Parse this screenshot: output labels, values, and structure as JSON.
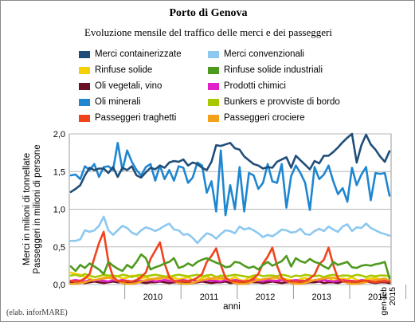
{
  "title": "Porto di Genova",
  "subtitle": "Evoluzione mensile del traffico delle merci e dei passeggeri",
  "credit": "(elab. inforMARE)",
  "chart_data": {
    "type": "line",
    "title": "Porto di Genova",
    "subtitle": "Evoluzione mensile del traffico delle merci e dei passeggeri",
    "xlabel": "anni",
    "ylabel": "Merci in milioni di tonnellate\nPasseggeri in milioni di persone",
    "ylim": [
      0,
      2.0
    ],
    "yticks": [
      "0,0",
      "0,5",
      "1,0",
      "1,5",
      "2,0"
    ],
    "grid": true,
    "legend_position": "top",
    "x_labels": [
      "2010",
      "2011",
      "2012",
      "2013",
      "2014",
      "gen-feb\n2015"
    ],
    "x_start": "2009-01",
    "x_end": "2015-02",
    "series": [
      {
        "name": "Merci containerizzate",
        "color": "#1f4e79",
        "values": [
          1.23,
          1.27,
          1.32,
          1.45,
          1.55,
          1.52,
          1.54,
          1.54,
          1.48,
          1.56,
          1.43,
          1.55,
          1.52,
          1.57,
          1.45,
          1.42,
          1.49,
          1.55,
          1.53,
          1.58,
          1.55,
          1.62,
          1.64,
          1.63,
          1.66,
          1.58,
          1.62,
          1.6,
          1.55,
          1.52,
          1.63,
          1.85,
          1.84,
          1.86,
          1.88,
          1.81,
          1.79,
          1.7,
          1.65,
          1.6,
          1.58,
          1.54,
          1.56,
          1.55,
          1.63,
          1.66,
          1.69,
          1.55,
          1.71,
          1.65,
          1.59,
          1.53,
          1.64,
          1.61,
          1.71,
          1.71,
          1.76,
          1.82,
          1.89,
          1.95,
          2.0,
          1.62,
          1.85,
          1.99,
          1.86,
          1.79,
          1.7,
          1.63,
          1.77
        ]
      },
      {
        "name": "Merci convenzionali",
        "color": "#8cc8f0",
        "values": [
          0.58,
          0.58,
          0.6,
          0.72,
          0.7,
          0.72,
          0.78,
          0.9,
          0.72,
          0.66,
          0.72,
          0.78,
          0.75,
          0.69,
          0.66,
          0.72,
          0.76,
          0.74,
          0.71,
          0.74,
          0.78,
          0.81,
          0.73,
          0.72,
          0.66,
          0.67,
          0.62,
          0.55,
          0.62,
          0.68,
          0.66,
          0.61,
          0.67,
          0.72,
          0.71,
          0.68,
          0.77,
          0.73,
          0.75,
          0.72,
          0.68,
          0.63,
          0.66,
          0.64,
          0.68,
          0.73,
          0.72,
          0.69,
          0.7,
          0.74,
          0.67,
          0.66,
          0.71,
          0.74,
          0.71,
          0.77,
          0.73,
          0.7,
          0.77,
          0.8,
          0.71,
          0.76,
          0.75,
          0.81,
          0.75,
          0.72,
          0.69,
          0.67,
          0.65
        ]
      },
      {
        "name": "Rinfuse solide",
        "color": "#f6d000",
        "values": [
          0.16,
          0.14,
          0.13,
          0.1,
          0.08,
          0.05,
          0.07,
          0.09,
          0.12,
          0.1,
          0.11,
          0.08,
          0.09,
          0.12,
          0.11,
          0.08,
          0.1,
          0.07,
          0.06,
          0.08,
          0.1,
          0.12,
          0.09,
          0.07,
          0.08,
          0.1,
          0.06,
          0.05,
          0.09,
          0.11,
          0.07,
          0.06,
          0.08,
          0.05,
          0.07,
          0.1,
          0.06,
          0.05,
          0.09,
          0.1,
          0.07,
          0.05,
          0.08,
          0.06,
          0.05,
          0.08,
          0.07,
          0.06,
          0.05,
          0.07,
          0.09,
          0.06,
          0.05,
          0.07,
          0.08,
          0.09,
          0.05,
          0.06,
          0.08,
          0.07,
          0.1,
          0.06,
          0.05,
          0.07,
          0.08,
          0.09,
          0.06,
          0.05,
          0.05
        ]
      },
      {
        "name": "Rinfuse solide industriali",
        "color": "#4e9a1e",
        "values": [
          0.24,
          0.18,
          0.26,
          0.22,
          0.28,
          0.24,
          0.2,
          0.14,
          0.3,
          0.25,
          0.21,
          0.18,
          0.26,
          0.22,
          0.3,
          0.4,
          0.35,
          0.2,
          0.23,
          0.25,
          0.28,
          0.3,
          0.35,
          0.22,
          0.24,
          0.28,
          0.25,
          0.3,
          0.33,
          0.35,
          0.32,
          0.29,
          0.27,
          0.23,
          0.24,
          0.3,
          0.29,
          0.25,
          0.22,
          0.24,
          0.2,
          0.26,
          0.3,
          0.25,
          0.28,
          0.31,
          0.38,
          0.24,
          0.35,
          0.31,
          0.29,
          0.34,
          0.3,
          0.28,
          0.24,
          0.21,
          0.3,
          0.26,
          0.28,
          0.3,
          0.23,
          0.22,
          0.25,
          0.26,
          0.25,
          0.27,
          0.28,
          0.3,
          0.08
        ]
      },
      {
        "name": "Oli vegetali, vino",
        "color": "#6b0f24",
        "values": [
          0.03,
          0.04,
          0.03,
          0.02,
          0.03,
          0.04,
          0.03,
          0.02,
          0.03,
          0.04,
          0.03,
          0.03,
          0.02,
          0.03,
          0.04,
          0.03,
          0.02,
          0.03,
          0.03,
          0.04,
          0.03,
          0.02,
          0.03,
          0.03,
          0.04,
          0.03,
          0.02,
          0.03,
          0.04,
          0.03,
          0.02,
          0.03,
          0.03,
          0.04,
          0.02,
          0.03,
          0.03,
          0.02,
          0.04,
          0.03,
          0.03,
          0.02,
          0.03,
          0.04,
          0.03,
          0.02,
          0.03,
          0.03,
          0.04,
          0.03,
          0.02,
          0.03,
          0.03,
          0.04,
          0.02,
          0.03,
          0.03,
          0.02,
          0.04,
          0.03,
          0.03,
          0.02,
          0.03,
          0.04,
          0.03,
          0.02,
          0.03,
          0.03,
          0.02
        ]
      },
      {
        "name": "Prodotti chimici",
        "color": "#e020c8",
        "values": [
          0.05,
          0.06,
          0.05,
          0.04,
          0.06,
          0.05,
          0.06,
          0.05,
          0.04,
          0.06,
          0.05,
          0.06,
          0.05,
          0.04,
          0.06,
          0.05,
          0.05,
          0.06,
          0.04,
          0.05,
          0.06,
          0.05,
          0.04,
          0.05,
          0.06,
          0.05,
          0.06,
          0.04,
          0.05,
          0.06,
          0.05,
          0.05,
          0.04,
          0.06,
          0.05,
          0.06,
          0.05,
          0.04,
          0.05,
          0.06,
          0.05,
          0.04,
          0.06,
          0.05,
          0.05,
          0.06,
          0.04,
          0.05,
          0.06,
          0.05,
          0.05,
          0.04,
          0.06,
          0.05,
          0.06,
          0.05,
          0.04,
          0.05,
          0.06,
          0.05,
          0.05,
          0.04,
          0.06,
          0.05,
          0.05,
          0.06,
          0.04,
          0.05,
          0.05
        ]
      },
      {
        "name": "Oli minerali",
        "color": "#1f86d0",
        "values": [
          1.45,
          1.46,
          1.4,
          1.57,
          1.52,
          1.6,
          1.43,
          1.56,
          1.57,
          1.52,
          1.88,
          1.52,
          1.78,
          1.63,
          1.52,
          1.45,
          1.56,
          1.6,
          1.38,
          1.58,
          1.4,
          1.52,
          1.38,
          1.57,
          1.55,
          1.35,
          1.42,
          1.62,
          1.58,
          1.22,
          1.37,
          0.97,
          1.78,
          0.92,
          1.32,
          1.0,
          1.56,
          0.97,
          1.48,
          1.45,
          1.27,
          1.35,
          1.6,
          1.37,
          1.35,
          1.6,
          1.02,
          1.44,
          1.58,
          1.48,
          1.35,
          0.99,
          1.56,
          1.4,
          1.46,
          1.58,
          1.37,
          1.2,
          1.28,
          1.1,
          1.55,
          1.32,
          1.46,
          1.56,
          1.12,
          1.48,
          1.47,
          1.48,
          1.18
        ]
      },
      {
        "name": "Bunkers e provviste di bordo",
        "color": "#a8c800",
        "values": [
          0.12,
          0.13,
          0.11,
          0.14,
          0.12,
          0.1,
          0.11,
          0.13,
          0.12,
          0.12,
          0.11,
          0.13,
          0.12,
          0.1,
          0.12,
          0.13,
          0.11,
          0.12,
          0.13,
          0.12,
          0.11,
          0.1,
          0.12,
          0.13,
          0.12,
          0.11,
          0.12,
          0.13,
          0.11,
          0.12,
          0.13,
          0.1,
          0.12,
          0.11,
          0.12,
          0.13,
          0.12,
          0.11,
          0.1,
          0.12,
          0.13,
          0.11,
          0.12,
          0.12,
          0.11,
          0.13,
          0.12,
          0.1,
          0.12,
          0.11,
          0.13,
          0.12,
          0.11,
          0.12,
          0.1,
          0.12,
          0.13,
          0.11,
          0.12,
          0.12,
          0.11,
          0.13,
          0.12,
          0.1,
          0.12,
          0.11,
          0.12,
          0.12,
          0.11
        ]
      },
      {
        "name": "Passeggeri traghetti",
        "color": "#f0431c",
        "values": [
          0.05,
          0.04,
          0.05,
          0.08,
          0.14,
          0.35,
          0.55,
          0.7,
          0.3,
          0.1,
          0.05,
          0.04,
          0.05,
          0.04,
          0.06,
          0.1,
          0.16,
          0.34,
          0.45,
          0.56,
          0.28,
          0.1,
          0.05,
          0.04,
          0.05,
          0.04,
          0.06,
          0.09,
          0.14,
          0.3,
          0.38,
          0.48,
          0.26,
          0.09,
          0.05,
          0.04,
          0.04,
          0.04,
          0.05,
          0.08,
          0.14,
          0.28,
          0.37,
          0.49,
          0.25,
          0.09,
          0.05,
          0.04,
          0.04,
          0.04,
          0.05,
          0.08,
          0.13,
          0.27,
          0.33,
          0.49,
          0.26,
          0.08,
          0.04,
          0.04,
          0.04,
          0.04,
          0.05,
          0.05,
          0.04,
          0.03,
          0.04,
          0.04,
          0.04
        ]
      },
      {
        "name": "Passeggeri crociere",
        "color": "#f5a01a",
        "values": [
          0.01,
          0.01,
          0.02,
          0.03,
          0.05,
          0.06,
          0.07,
          0.08,
          0.09,
          0.08,
          0.05,
          0.02,
          0.01,
          0.01,
          0.02,
          0.04,
          0.06,
          0.07,
          0.08,
          0.09,
          0.09,
          0.08,
          0.05,
          0.02,
          0.01,
          0.01,
          0.02,
          0.04,
          0.06,
          0.07,
          0.08,
          0.09,
          0.09,
          0.08,
          0.05,
          0.02,
          0.01,
          0.01,
          0.02,
          0.04,
          0.06,
          0.07,
          0.08,
          0.09,
          0.09,
          0.08,
          0.05,
          0.02,
          0.01,
          0.01,
          0.02,
          0.04,
          0.06,
          0.07,
          0.08,
          0.09,
          0.09,
          0.08,
          0.05,
          0.02,
          0.01,
          0.01,
          0.02,
          0.03,
          0.05,
          0.06,
          0.07,
          0.08,
          0.05
        ]
      }
    ]
  }
}
